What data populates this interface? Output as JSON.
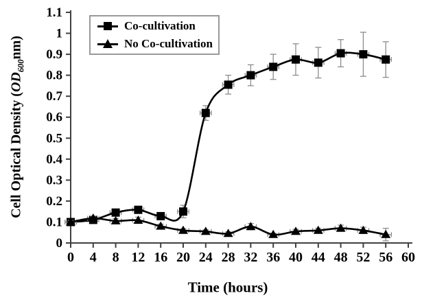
{
  "figure": {
    "background": "#ffffff"
  },
  "axes": {
    "x": {
      "title": "Time (hours)",
      "min": 0,
      "max": 60,
      "tick_step": 4
    },
    "y": {
      "title_prefix": "Cell Optical Density (",
      "title_italic": "OD",
      "title_sub": "600",
      "title_suffix": "nm)",
      "min": 0,
      "max": 1.1,
      "tick_step": 0.1
    }
  },
  "legend": {
    "items": [
      {
        "label": "Co-cultivation",
        "marker": "square-marker-icon"
      },
      {
        "label": "No Co-cultivation",
        "marker": "triangle-marker-icon"
      }
    ]
  },
  "style": {
    "series_color": "#000000",
    "error_bar_color": "#8c8c8c",
    "axis_color": "#404040",
    "legend_border_color": "#999999",
    "text_color": "#000000"
  },
  "chart_data": {
    "type": "line",
    "title": "",
    "xlabel": "Time (hours)",
    "ylabel": "Cell Optical Density (OD600 nm)",
    "xlim": [
      0,
      60
    ],
    "ylim": [
      0,
      1.1
    ],
    "grid": false,
    "legend_position": "top-left-inside",
    "x_ticks": [
      0,
      4,
      8,
      12,
      16,
      20,
      24,
      28,
      32,
      36,
      40,
      44,
      48,
      52,
      56,
      60
    ],
    "y_ticks": [
      0,
      0.1,
      0.2,
      0.3,
      0.4,
      0.5,
      0.6,
      0.7,
      0.8,
      0.9,
      1,
      1.1
    ],
    "x": [
      0,
      4,
      8,
      12,
      16,
      20,
      24,
      28,
      32,
      36,
      40,
      44,
      48,
      52,
      56
    ],
    "series": [
      {
        "name": "Co-cultivation",
        "marker": "square",
        "values": [
          0.1,
          0.11,
          0.145,
          0.158,
          0.128,
          0.15,
          0.62,
          0.755,
          0.8,
          0.84,
          0.875,
          0.86,
          0.905,
          0.9,
          0.875
        ],
        "y_err": [
          0.01,
          0.01,
          0.012,
          0.015,
          0.012,
          0.03,
          0.035,
          0.045,
          0.05,
          0.06,
          0.075,
          0.073,
          0.065,
          0.105,
          0.085
        ],
        "x_err": 1
      },
      {
        "name": "No Co-cultivation",
        "marker": "triangle",
        "values": [
          0.1,
          0.118,
          0.105,
          0.108,
          0.08,
          0.06,
          0.055,
          0.045,
          0.078,
          0.04,
          0.055,
          0.06,
          0.07,
          0.06,
          0.04
        ],
        "y_err": [
          0.008,
          0.01,
          0.012,
          0.015,
          0.01,
          0.008,
          0.008,
          0.008,
          0.015,
          0.006,
          0.01,
          0.01,
          0.015,
          0.015,
          0.03
        ],
        "x_err": 1
      }
    ]
  }
}
